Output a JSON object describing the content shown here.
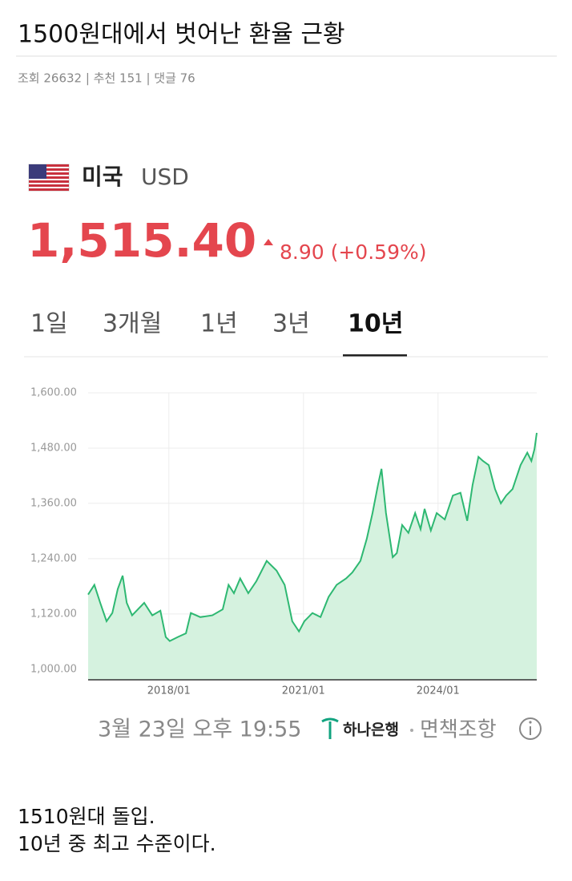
{
  "post": {
    "title": "1500원대에서 벗어난 환율 근황",
    "meta": "조회 26632 | 추천 151 | 댓글 76",
    "body": [
      "1510원대 돌입.",
      "10년 중 최고 수준이다."
    ]
  },
  "card": {
    "country": "미국",
    "currency": "USD",
    "rate": "1,515.40",
    "change": "8.90 (+0.59%)",
    "tabs": [
      "1일",
      "3개월",
      "1년",
      "3년",
      "10년"
    ],
    "active_tab": 4,
    "timestamp": "3월 23일 오후 19:55",
    "bank": "하나은행",
    "disclaimer": "면책조항"
  },
  "chart_data": {
    "type": "area",
    "color": "#2eb872",
    "fill": "#d5f2df",
    "grid": true,
    "x": [
      2016.2,
      2016.34,
      2016.47,
      2016.61,
      2016.74,
      2016.86,
      2016.97,
      2017.06,
      2017.18,
      2017.31,
      2017.45,
      2017.63,
      2017.81,
      2017.93,
      2018.02,
      2018.2,
      2018.38,
      2018.49,
      2018.7,
      2018.97,
      2019.2,
      2019.33,
      2019.45,
      2019.59,
      2019.77,
      2019.95,
      2020.18,
      2020.4,
      2020.58,
      2020.75,
      2020.9,
      2021.02,
      2021.2,
      2021.38,
      2021.56,
      2021.74,
      2021.95,
      2022.09,
      2022.27,
      2022.41,
      2022.54,
      2022.66,
      2022.74,
      2022.84,
      2022.99,
      2023.08,
      2023.2,
      2023.34,
      2023.49,
      2023.61,
      2023.7,
      2023.84,
      2023.97,
      2024.15,
      2024.33,
      2024.5,
      2024.65,
      2024.77,
      2024.9,
      2025.0,
      2025.13,
      2025.27,
      2025.4,
      2025.52,
      2025.66,
      2025.84,
      2025.99,
      2026.08,
      2026.15,
      2026.2
    ],
    "values": [
      1162,
      1183,
      1144,
      1104,
      1122,
      1174,
      1203,
      1144,
      1117,
      1130,
      1144,
      1117,
      1127,
      1070,
      1061,
      1070,
      1078,
      1122,
      1113,
      1117,
      1130,
      1183,
      1165,
      1197,
      1165,
      1191,
      1235,
      1214,
      1183,
      1104,
      1082,
      1104,
      1122,
      1113,
      1157,
      1183,
      1197,
      1210,
      1235,
      1283,
      1339,
      1400,
      1435,
      1339,
      1243,
      1252,
      1313,
      1296,
      1339,
      1304,
      1348,
      1301,
      1339,
      1325,
      1377,
      1383,
      1322,
      1400,
      1461,
      1452,
      1443,
      1391,
      1360,
      1377,
      1391,
      1443,
      1470,
      1452,
      1478,
      1513
    ],
    "xlim": [
      2016.2,
      2026.2
    ],
    "ylim": [
      977,
      1600
    ],
    "xticks": [
      {
        "value": 2018,
        "label": "2018/01"
      },
      {
        "value": 2021,
        "label": "2021/01"
      },
      {
        "value": 2024,
        "label": "2024/01"
      }
    ],
    "yticks": [
      {
        "value": 1000,
        "label": "1,000.00"
      },
      {
        "value": 1120,
        "label": "1,120.00"
      },
      {
        "value": 1240,
        "label": "1,240.00"
      },
      {
        "value": 1360,
        "label": "1,360.00"
      },
      {
        "value": 1480,
        "label": "1,480.00"
      },
      {
        "value": 1600,
        "label": "1,600.00"
      }
    ]
  }
}
